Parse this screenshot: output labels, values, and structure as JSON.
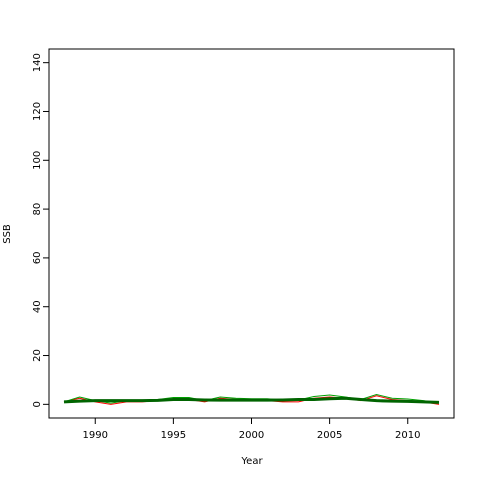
{
  "chart_data": {
    "type": "line",
    "xlabel": "Year",
    "ylabel": "SSB",
    "x": [
      1988,
      1989,
      1990,
      1991,
      1992,
      1993,
      1994,
      1995,
      1996,
      1997,
      1998,
      1999,
      2000,
      2001,
      2002,
      2003,
      2004,
      2005,
      2006,
      2007,
      2008,
      2009,
      2010,
      2011,
      2012
    ],
    "series": [
      {
        "color": "#ff0000",
        "width": 1,
        "values": [
          1,
          2.5,
          1,
          0,
          1,
          1,
          1.5,
          2,
          2,
          1,
          2.5,
          2,
          1.5,
          1.5,
          1,
          1,
          2.5,
          3,
          2.5,
          1.5,
          3.5,
          2,
          1.5,
          1,
          0
        ]
      },
      {
        "color": "#00a000",
        "width": 1,
        "values": [
          1,
          3,
          1.5,
          0.5,
          1.5,
          1.5,
          2,
          2.8,
          2.8,
          1.5,
          3,
          2.5,
          2.3,
          2.3,
          1.8,
          1.8,
          3.2,
          3.8,
          3,
          2,
          4,
          2.5,
          2.2,
          1.5,
          0.5
        ]
      },
      {
        "color": "#006400",
        "width": 3,
        "values": [
          1,
          1.3,
          1.5,
          1.5,
          1.5,
          1.5,
          1.6,
          2,
          2,
          1.8,
          1.7,
          1.7,
          1.7,
          1.7,
          1.8,
          2,
          2,
          2.3,
          2.5,
          2,
          1.5,
          1.3,
          1.2,
          1,
          0.8
        ]
      }
    ],
    "xlim": [
      1987.04,
      2012.96
    ],
    "xticks": [
      1990,
      1995,
      2000,
      2005,
      2010
    ],
    "ylim": [
      -5.6,
      145.6
    ],
    "yticks": [
      0,
      20,
      40,
      60,
      80,
      100,
      120,
      140
    ]
  }
}
